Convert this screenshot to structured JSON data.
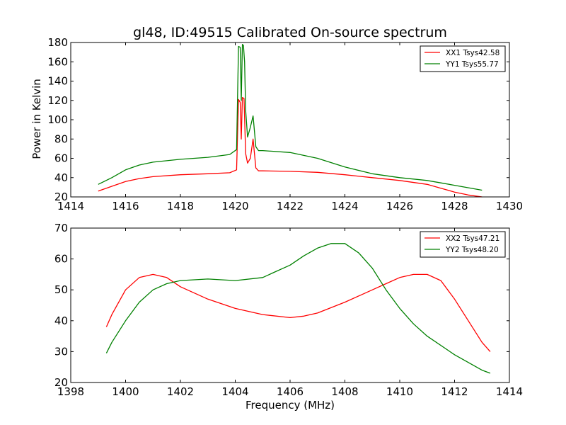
{
  "figure": {
    "title": "gl48, ID:49515 Calibrated On-source spectrum",
    "shared_xlabel": "Frequency (MHz)"
  },
  "colors": {
    "xx": "#ff0000",
    "yy": "#008000"
  },
  "chart_data": [
    {
      "type": "line",
      "title": "gl48, ID:49515 Calibrated On-source spectrum",
      "xlabel": "",
      "ylabel": "Power in Kelvin",
      "xlim": [
        1414,
        1430
      ],
      "ylim": [
        20,
        180
      ],
      "xticks": [
        1414,
        1416,
        1418,
        1420,
        1422,
        1424,
        1426,
        1428,
        1430
      ],
      "yticks": [
        20,
        40,
        60,
        80,
        100,
        120,
        140,
        160,
        180
      ],
      "grid": false,
      "legend_position": "top-right",
      "series": [
        {
          "name": "XX1 Tsys42.58",
          "color": "#ff0000",
          "x": [
            1415.0,
            1415.5,
            1416.0,
            1416.5,
            1417.0,
            1418.0,
            1419.0,
            1419.8,
            1420.05,
            1420.12,
            1420.18,
            1420.22,
            1420.26,
            1420.32,
            1420.38,
            1420.45,
            1420.55,
            1420.65,
            1420.75,
            1420.85,
            1421.0,
            1422.0,
            1423.0,
            1424.0,
            1425.0,
            1426.0,
            1427.0,
            1427.5,
            1428.0,
            1428.5,
            1429.0
          ],
          "y": [
            26,
            31,
            36,
            39,
            41,
            43,
            44,
            45,
            48,
            121,
            118,
            80,
            123,
            122,
            65,
            55,
            60,
            80,
            50,
            47,
            47,
            46.5,
            45.5,
            43,
            40,
            37,
            33,
            29,
            25,
            22,
            20
          ]
        },
        {
          "name": "YY1 Tsys55.77",
          "color": "#008000",
          "x": [
            1415.0,
            1415.5,
            1416.0,
            1416.5,
            1417.0,
            1418.0,
            1419.0,
            1419.8,
            1420.05,
            1420.12,
            1420.18,
            1420.22,
            1420.26,
            1420.3,
            1420.34,
            1420.38,
            1420.45,
            1420.55,
            1420.65,
            1420.75,
            1420.85,
            1421.0,
            1422.0,
            1423.0,
            1424.0,
            1425.0,
            1426.0,
            1427.0,
            1428.0,
            1429.0
          ],
          "y": [
            33,
            40,
            48,
            53,
            56,
            59,
            61,
            64,
            69,
            176,
            175,
            120,
            178,
            177,
            160,
            110,
            82,
            92,
            104,
            72,
            68,
            68,
            66,
            60,
            51,
            44,
            40,
            37,
            32,
            27
          ]
        }
      ]
    },
    {
      "type": "line",
      "title": "",
      "xlabel": "Frequency (MHz)",
      "ylabel": "",
      "xlim": [
        1398,
        1414
      ],
      "ylim": [
        20,
        70
      ],
      "xticks": [
        1398,
        1400,
        1402,
        1404,
        1406,
        1408,
        1410,
        1412,
        1414
      ],
      "yticks": [
        20,
        30,
        40,
        50,
        60,
        70
      ],
      "grid": false,
      "legend_position": "top-right",
      "series": [
        {
          "name": "XX2 Tsys47.21",
          "color": "#ff0000",
          "x": [
            1399.3,
            1399.5,
            1400.0,
            1400.5,
            1401.0,
            1401.5,
            1402.0,
            1403.0,
            1404.0,
            1405.0,
            1406.0,
            1406.5,
            1407.0,
            1408.0,
            1409.0,
            1409.5,
            1410.0,
            1410.5,
            1411.0,
            1411.5,
            1412.0,
            1412.5,
            1413.0,
            1413.3
          ],
          "y": [
            38,
            42,
            50,
            54,
            55,
            54,
            51,
            47,
            44,
            42,
            41,
            41.5,
            42.5,
            46,
            50,
            52,
            54,
            55,
            55,
            53,
            47,
            40,
            33,
            30
          ]
        },
        {
          "name": "YY2 Tsys48.20",
          "color": "#008000",
          "x": [
            1399.3,
            1399.5,
            1400.0,
            1400.5,
            1401.0,
            1401.5,
            1402.0,
            1403.0,
            1404.0,
            1405.0,
            1405.5,
            1406.0,
            1406.5,
            1407.0,
            1407.5,
            1408.0,
            1408.5,
            1409.0,
            1409.5,
            1410.0,
            1410.5,
            1411.0,
            1412.0,
            1413.0,
            1413.3
          ],
          "y": [
            29.5,
            33,
            40,
            46,
            50,
            52,
            53,
            53.5,
            53,
            54,
            56,
            58,
            61,
            63.5,
            65,
            65,
            62,
            57,
            50,
            44,
            39,
            35,
            29,
            24,
            23
          ]
        }
      ]
    }
  ]
}
